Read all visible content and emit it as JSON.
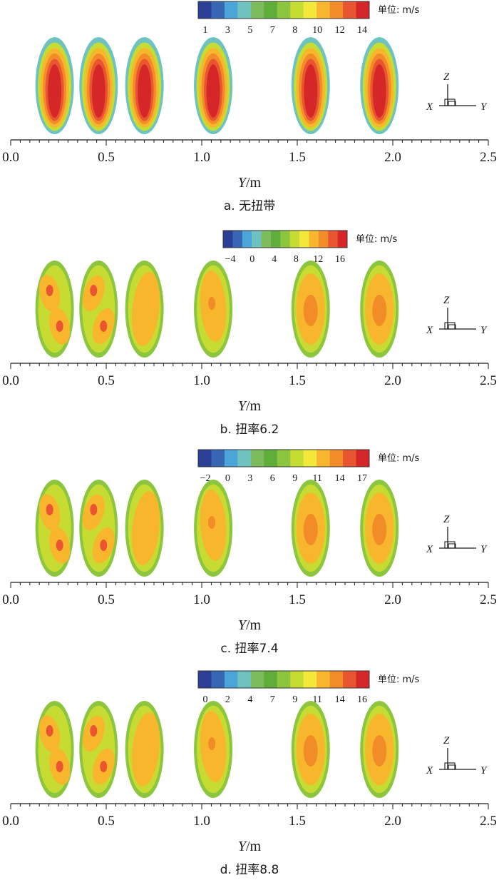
{
  "axis": {
    "x_label": "Y/m",
    "x_range": [
      0.0,
      2.5
    ],
    "tick_values": [
      0.0,
      0.5,
      1.0,
      1.5,
      2.0,
      2.5
    ],
    "tick_labels": [
      "0.0",
      "0.5",
      "1.0",
      "1.5",
      "2.0",
      "2.5"
    ]
  },
  "triad": {
    "z": "Z",
    "x": "X",
    "y": "Y"
  },
  "ellipse_centers_y_m": [
    0.23,
    0.46,
    0.7,
    1.06,
    1.57,
    1.93
  ],
  "palette": [
    "#2b3f94",
    "#3766b2",
    "#4aa6d8",
    "#6ec3c0",
    "#7dbc5a",
    "#5fae3b",
    "#8cc63f",
    "#c7dc33",
    "#f2e83a",
    "#f8b62d",
    "#f28c28",
    "#e85530",
    "#d62728"
  ],
  "panels": [
    {
      "caption": "a. 无扭带",
      "unit_label": "单位: m/s",
      "colorbar_ticks": [
        "1",
        "3",
        "5",
        "7",
        "8",
        "10",
        "12",
        "14"
      ],
      "pattern": "uniform-core"
    },
    {
      "caption": "b. 扭率6.2",
      "unit_label": "单位: m/s",
      "colorbar_ticks": [
        "−4",
        "0",
        "4",
        "8",
        "12",
        "16"
      ],
      "pattern": "twisted-twin-core"
    },
    {
      "caption": "c. 扭率7.4",
      "unit_label": "单位: m/s",
      "colorbar_ticks": [
        "−2",
        "0",
        "3",
        "6",
        "9",
        "11",
        "14",
        "17"
      ],
      "pattern": "twisted-twin-core"
    },
    {
      "caption": "d. 扭率8.8",
      "unit_label": "单位: m/s",
      "colorbar_ticks": [
        "0",
        "2",
        "4",
        "7",
        "9",
        "11",
        "14",
        "16"
      ],
      "pattern": "twisted-twin-core"
    }
  ]
}
